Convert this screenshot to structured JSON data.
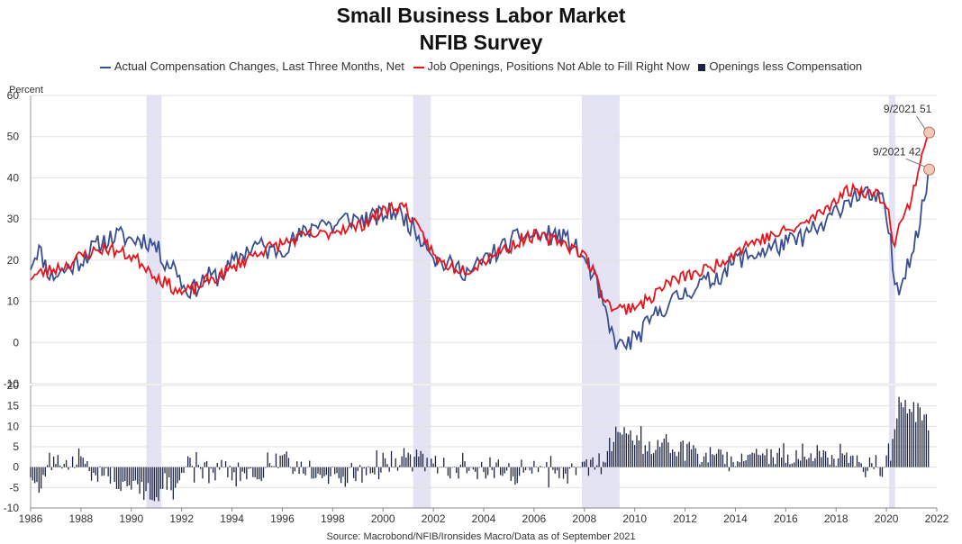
{
  "chart_data": {
    "type": "line",
    "title": "Small Business Labor Market",
    "subtitle": "NFIB Survey",
    "ylabel": "Percent",
    "ylim_top": [
      -10,
      60
    ],
    "yticks_top": [
      -10,
      0,
      10,
      20,
      30,
      40,
      50,
      60
    ],
    "ylim_bottom": [
      -10,
      20
    ],
    "yticks_bottom": [
      -10,
      -5,
      0,
      5,
      10,
      15,
      20
    ],
    "xlim": [
      1986,
      2022
    ],
    "xticks": [
      1986,
      1988,
      1990,
      1992,
      1994,
      1996,
      1998,
      2000,
      2002,
      2004,
      2006,
      2008,
      2010,
      2012,
      2014,
      2016,
      2018,
      2020,
      2022
    ],
    "recessions": [
      [
        1990.6,
        1991.2
      ],
      [
        2001.2,
        2001.9
      ],
      [
        2007.9,
        2009.4
      ],
      [
        2020.1,
        2020.35
      ]
    ],
    "series": [
      {
        "name": "Actual Compensation Changes, Last Three Months, Net",
        "color": "#3a4f8f",
        "anchors": [
          [
            1986,
            19
          ],
          [
            1986.3,
            23
          ],
          [
            1986.8,
            16
          ],
          [
            1987.5,
            18
          ],
          [
            1988,
            20
          ],
          [
            1988.5,
            23
          ],
          [
            1989,
            25
          ],
          [
            1989.5,
            26
          ],
          [
            1990,
            25
          ],
          [
            1990.5,
            25
          ],
          [
            1990.9,
            24
          ],
          [
            1991.3,
            20
          ],
          [
            1991.8,
            18
          ],
          [
            1992.1,
            13
          ],
          [
            1992.5,
            13
          ],
          [
            1993,
            16
          ],
          [
            1993.5,
            16
          ],
          [
            1994,
            19
          ],
          [
            1994.5,
            22
          ],
          [
            1995,
            24
          ],
          [
            1995.5,
            22
          ],
          [
            1996,
            23
          ],
          [
            1996.5,
            25
          ],
          [
            1997,
            27
          ],
          [
            1997.5,
            30
          ],
          [
            1998,
            28
          ],
          [
            1998.5,
            30
          ],
          [
            1999,
            30
          ],
          [
            1999.5,
            30
          ],
          [
            2000,
            31
          ],
          [
            2000.5,
            32
          ],
          [
            2000.9,
            30
          ],
          [
            2001.3,
            27
          ],
          [
            2001.8,
            24
          ],
          [
            2002.1,
            20
          ],
          [
            2002.5,
            19
          ],
          [
            2003,
            18
          ],
          [
            2003.5,
            17
          ],
          [
            2004,
            20
          ],
          [
            2004.5,
            22
          ],
          [
            2005,
            24
          ],
          [
            2005.5,
            26
          ],
          [
            2006,
            26
          ],
          [
            2006.5,
            26
          ],
          [
            2007,
            26
          ],
          [
            2007.5,
            24
          ],
          [
            2007.9,
            21
          ],
          [
            2008.3,
            17
          ],
          [
            2008.7,
            10
          ],
          [
            2009,
            3
          ],
          [
            2009.4,
            -1
          ],
          [
            2009.8,
            0
          ],
          [
            2010.2,
            2
          ],
          [
            2010.6,
            5
          ],
          [
            2011,
            8
          ],
          [
            2011.5,
            10
          ],
          [
            2012,
            12
          ],
          [
            2012.5,
            14
          ],
          [
            2013,
            15
          ],
          [
            2013.5,
            17
          ],
          [
            2014,
            20
          ],
          [
            2014.5,
            21
          ],
          [
            2015,
            22
          ],
          [
            2015.5,
            23
          ],
          [
            2016,
            24
          ],
          [
            2016.5,
            25
          ],
          [
            2017,
            27
          ],
          [
            2017.5,
            28
          ],
          [
            2018,
            32
          ],
          [
            2018.5,
            35
          ],
          [
            2019,
            36
          ],
          [
            2019.5,
            35
          ],
          [
            2019.9,
            34
          ],
          [
            2020.15,
            25
          ],
          [
            2020.3,
            15
          ],
          [
            2020.5,
            14
          ],
          [
            2020.7,
            17
          ],
          [
            2021,
            22
          ],
          [
            2021.3,
            28
          ],
          [
            2021.5,
            35
          ],
          [
            2021.7,
            42
          ]
        ],
        "noise": 2.5,
        "seed": 11
      },
      {
        "name": "Job Openings, Positions Not Able to Fill Right Now",
        "color": "#e8141c",
        "anchors": [
          [
            1986,
            16
          ],
          [
            1986.5,
            17
          ],
          [
            1987,
            18
          ],
          [
            1987.5,
            19
          ],
          [
            1988,
            21
          ],
          [
            1988.5,
            22
          ],
          [
            1989,
            23
          ],
          [
            1989.5,
            22
          ],
          [
            1990,
            21
          ],
          [
            1990.5,
            19
          ],
          [
            1991,
            16
          ],
          [
            1991.5,
            14
          ],
          [
            1992,
            12
          ],
          [
            1992.5,
            13
          ],
          [
            1993,
            15
          ],
          [
            1993.5,
            16
          ],
          [
            1994,
            18
          ],
          [
            1994.5,
            20
          ],
          [
            1995,
            22
          ],
          [
            1995.5,
            23
          ],
          [
            1996,
            24
          ],
          [
            1996.5,
            25
          ],
          [
            1997,
            26
          ],
          [
            1997.5,
            26
          ],
          [
            1998,
            27
          ],
          [
            1998.5,
            28
          ],
          [
            1999,
            28
          ],
          [
            1999.5,
            30
          ],
          [
            2000,
            32
          ],
          [
            2000.5,
            33
          ],
          [
            2000.9,
            33
          ],
          [
            2001.3,
            28
          ],
          [
            2001.8,
            24
          ],
          [
            2002.1,
            20
          ],
          [
            2002.5,
            19
          ],
          [
            2003,
            18
          ],
          [
            2003.5,
            18
          ],
          [
            2004,
            20
          ],
          [
            2004.5,
            22
          ],
          [
            2005,
            23
          ],
          [
            2005.5,
            25
          ],
          [
            2006,
            26
          ],
          [
            2006.5,
            25
          ],
          [
            2007,
            25
          ],
          [
            2007.5,
            23
          ],
          [
            2007.9,
            22
          ],
          [
            2008.3,
            18
          ],
          [
            2008.7,
            12
          ],
          [
            2009,
            9
          ],
          [
            2009.5,
            8
          ],
          [
            2010,
            9
          ],
          [
            2010.5,
            10
          ],
          [
            2011,
            13
          ],
          [
            2011.5,
            15
          ],
          [
            2012,
            16
          ],
          [
            2012.5,
            17
          ],
          [
            2013,
            18
          ],
          [
            2013.5,
            20
          ],
          [
            2014,
            22
          ],
          [
            2014.5,
            24
          ],
          [
            2015,
            25
          ],
          [
            2015.5,
            26
          ],
          [
            2016,
            27
          ],
          [
            2016.5,
            28
          ],
          [
            2017,
            30
          ],
          [
            2017.5,
            32
          ],
          [
            2018,
            35
          ],
          [
            2018.5,
            37
          ],
          [
            2019,
            37
          ],
          [
            2019.5,
            36
          ],
          [
            2019.9,
            35
          ],
          [
            2020.15,
            30
          ],
          [
            2020.3,
            24
          ],
          [
            2020.5,
            28
          ],
          [
            2020.8,
            32
          ],
          [
            2021,
            35
          ],
          [
            2021.3,
            43
          ],
          [
            2021.5,
            48
          ],
          [
            2021.7,
            51
          ]
        ],
        "noise": 1.6,
        "seed": 23
      },
      {
        "name": "Openings less Compensation",
        "color": "#1c2341",
        "derived": "difference"
      }
    ],
    "annotations": [
      {
        "label": "9/2021 51",
        "x": 2021.7,
        "y": 51
      },
      {
        "label": "9/2021 42",
        "x": 2021.7,
        "y": 42
      }
    ]
  },
  "legend": {
    "item1": "Actual Compensation Changes, Last Three Months, Net",
    "item2": "Job Openings, Positions Not Able to Fill Right Now",
    "item3": "Openings less Compensation"
  },
  "source": "Source: Macrobond/NFIB/Ironsides Macro/Data as of September 2021"
}
